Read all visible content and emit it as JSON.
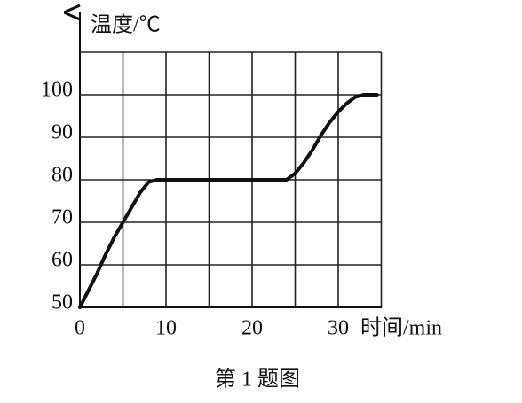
{
  "chart_data": {
    "type": "line",
    "y_label": "温度/℃",
    "x_label": "时间/min",
    "caption": "第 1 题图",
    "x": [
      0,
      1,
      2,
      3,
      4,
      5,
      6,
      7,
      8,
      9,
      10,
      15,
      20,
      24,
      25,
      26,
      27,
      28,
      29,
      30,
      31,
      32,
      33,
      34.5
    ],
    "series": [
      {
        "name": "温度",
        "color": "#111111",
        "values": [
          50,
          54,
          58,
          62.5,
          66.5,
          70,
          73.5,
          77,
          79.5,
          80,
          80,
          80,
          80,
          80,
          81.5,
          84,
          87,
          90.5,
          93.5,
          96,
          98,
          99.5,
          100,
          100
        ]
      }
    ],
    "xlim": [
      0,
      35
    ],
    "ylim": [
      50,
      110
    ],
    "xticks": [
      0,
      10,
      20,
      30
    ],
    "yticks": [
      50,
      60,
      70,
      80,
      90,
      100
    ],
    "x_grid": [
      5,
      10,
      15,
      20,
      25,
      30,
      35
    ],
    "y_grid": [
      60,
      70,
      80,
      90,
      100,
      110
    ],
    "grid": true
  }
}
